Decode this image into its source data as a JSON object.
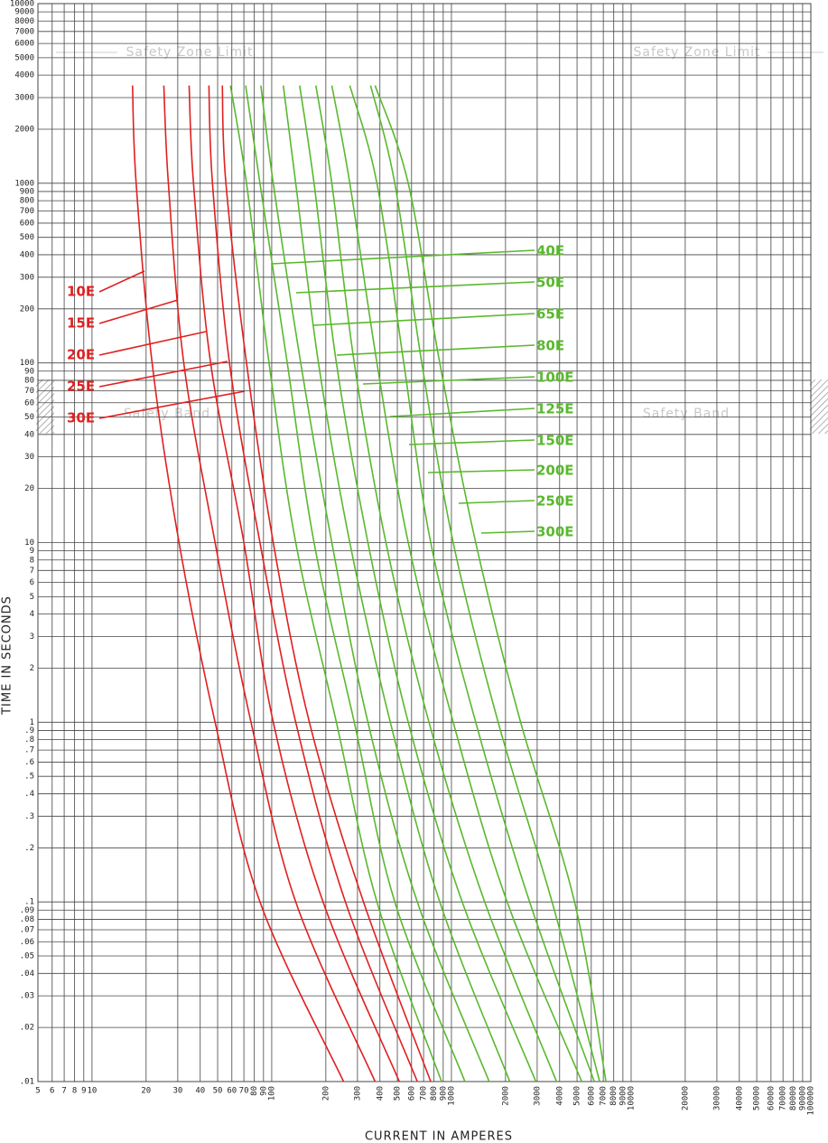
{
  "chart_data": {
    "type": "line",
    "xlabel": "CURRENT  IN  AMPERES",
    "ylabel": "TIME  IN  SECONDS",
    "x_scale": "log",
    "y_scale": "log",
    "grid": true,
    "xlim": [
      5,
      100000
    ],
    "ylim": [
      0.01,
      10000
    ],
    "xticks": [
      5,
      6,
      7,
      8,
      9,
      10,
      20,
      30,
      40,
      50,
      60,
      70,
      80,
      90,
      100,
      200,
      300,
      400,
      500,
      600,
      700,
      800,
      900,
      1000,
      2000,
      3000,
      4000,
      5000,
      6000,
      7000,
      8000,
      9000,
      10000,
      20000,
      30000,
      40000,
      50000,
      60000,
      70000,
      80000,
      90000,
      100000
    ],
    "yticks": [
      {
        "value": 0.01,
        "label": ".01"
      },
      {
        "value": 0.02,
        "label": ".02"
      },
      {
        "value": 0.03,
        "label": ".03"
      },
      {
        "value": 0.04,
        "label": ".04"
      },
      {
        "value": 0.05,
        "label": ".05"
      },
      {
        "value": 0.06,
        "label": ".06"
      },
      {
        "value": 0.07,
        "label": ".07"
      },
      {
        "value": 0.08,
        "label": ".08"
      },
      {
        "value": 0.09,
        "label": ".09"
      },
      {
        "value": 0.1,
        "label": ".1"
      },
      {
        "value": 0.2,
        "label": ".2"
      },
      {
        "value": 0.3,
        "label": ".3"
      },
      {
        "value": 0.4,
        "label": ".4"
      },
      {
        "value": 0.5,
        "label": ".5"
      },
      {
        "value": 0.6,
        "label": ".6"
      },
      {
        "value": 0.7,
        "label": ".7"
      },
      {
        "value": 0.8,
        "label": ".8"
      },
      {
        "value": 0.9,
        "label": ".9"
      },
      1,
      2,
      3,
      4,
      5,
      6,
      7,
      8,
      9,
      10,
      20,
      30,
      40,
      50,
      60,
      70,
      80,
      90,
      100,
      200,
      300,
      400,
      500,
      600,
      700,
      800,
      900,
      1000,
      2000,
      3000,
      4000,
      5000,
      6000,
      7000,
      8000,
      9000,
      10000
    ],
    "annotations": [
      "Safety Zone Limit",
      "Safety Zone Limit",
      "Safety Band",
      "Safety Band"
    ],
    "series": [
      {
        "name": "10E",
        "color": "#e02020",
        "x": [
          16.8,
          17.6,
          21.6,
          30.5,
          48.4,
          86,
          251
        ],
        "values": [
          3500,
          1000,
          100,
          10,
          1,
          0.1,
          0.01
        ]
      },
      {
        "name": "15E",
        "color": "#e02020",
        "x": [
          25.1,
          26.6,
          32.4,
          48.4,
          76.7,
          136,
          376
        ],
        "values": [
          3500,
          1000,
          100,
          10,
          1,
          0.1,
          0.01
        ]
      },
      {
        "name": "20E",
        "color": "#e02020",
        "x": [
          34.7,
          36.7,
          45.7,
          70,
          102,
          193,
          513
        ],
        "values": [
          3500,
          1000,
          100,
          10,
          1,
          0.1,
          0.01
        ]
      },
      {
        "name": "25E",
        "color": "#e02020",
        "x": [
          44.7,
          46.8,
          58.2,
          86,
          136,
          257,
          646
        ],
        "values": [
          3500,
          1000,
          100,
          10,
          1,
          0.1,
          0.01
        ]
      },
      {
        "name": "30E",
        "color": "#e02020",
        "x": [
          53.1,
          55.6,
          72.4,
          102,
          162,
          324,
          767
        ],
        "values": [
          3500,
          1000,
          100,
          10,
          1,
          0.1,
          0.01
        ]
      },
      {
        "name": "40E",
        "color": "#5ab82e",
        "x": [
          58.9,
          72.4,
          96.6,
          136,
          229,
          385,
          881
        ],
        "values": [
          3500,
          1000,
          100,
          10,
          1,
          0.1,
          0.01
        ]
      },
      {
        "name": "50E",
        "color": "#5ab82e",
        "x": [
          71.6,
          86,
          122,
          172,
          288,
          484,
          1189
        ],
        "values": [
          3500,
          1000,
          100,
          10,
          1,
          0.1,
          0.01
        ]
      },
      {
        "name": "65E",
        "color": "#5ab82e",
        "x": [
          87,
          102,
          145,
          216,
          343,
          646,
          1622
        ],
        "values": [
          3500,
          1000,
          100,
          10,
          1,
          0.1,
          0.01
        ]
      },
      {
        "name": "80E",
        "color": "#5ab82e",
        "x": [
          116,
          136,
          182,
          272,
          457,
          861,
          2113
        ],
        "values": [
          3500,
          1000,
          100,
          10,
          1,
          0.1,
          0.01
        ]
      },
      {
        "name": "100E",
        "color": "#5ab82e",
        "x": [
          143,
          172,
          229,
          343,
          575,
          1148,
          2951
        ],
        "values": [
          3500,
          1000,
          100,
          10,
          1,
          0.1,
          0.01
        ]
      },
      {
        "name": "125E",
        "color": "#5ab82e",
        "x": [
          176,
          216,
          288,
          432,
          750,
          1531,
          3846
        ],
        "values": [
          3500,
          1000,
          100,
          10,
          1,
          0.1,
          0.01
        ]
      },
      {
        "name": "150E",
        "color": "#5ab82e",
        "x": [
          216,
          272,
          385,
          575,
          1023,
          2042,
          5309
        ],
        "values": [
          3500,
          1000,
          100,
          10,
          1,
          0.1,
          0.01
        ]
      },
      {
        "name": "200E",
        "color": "#5ab82e",
        "x": [
          272,
          385,
          543,
          767,
          1365,
          2723,
          6237
        ],
        "values": [
          3500,
          1000,
          100,
          10,
          1,
          0.1,
          0.01
        ]
      },
      {
        "name": "250E",
        "color": "#5ab82e",
        "x": [
          355,
          484,
          684,
          1023,
          1820,
          3631,
          6683
        ],
        "values": [
          3500,
          1000,
          100,
          10,
          1,
          0.1,
          0.01
        ]
      },
      {
        "name": "300E",
        "color": "#5ab82e",
        "x": [
          376,
          575,
          861,
          1365,
          2427,
          4842,
          7244
        ],
        "values": [
          3500,
          1000,
          100,
          10,
          1,
          0.1,
          0.01
        ]
      }
    ]
  }
}
